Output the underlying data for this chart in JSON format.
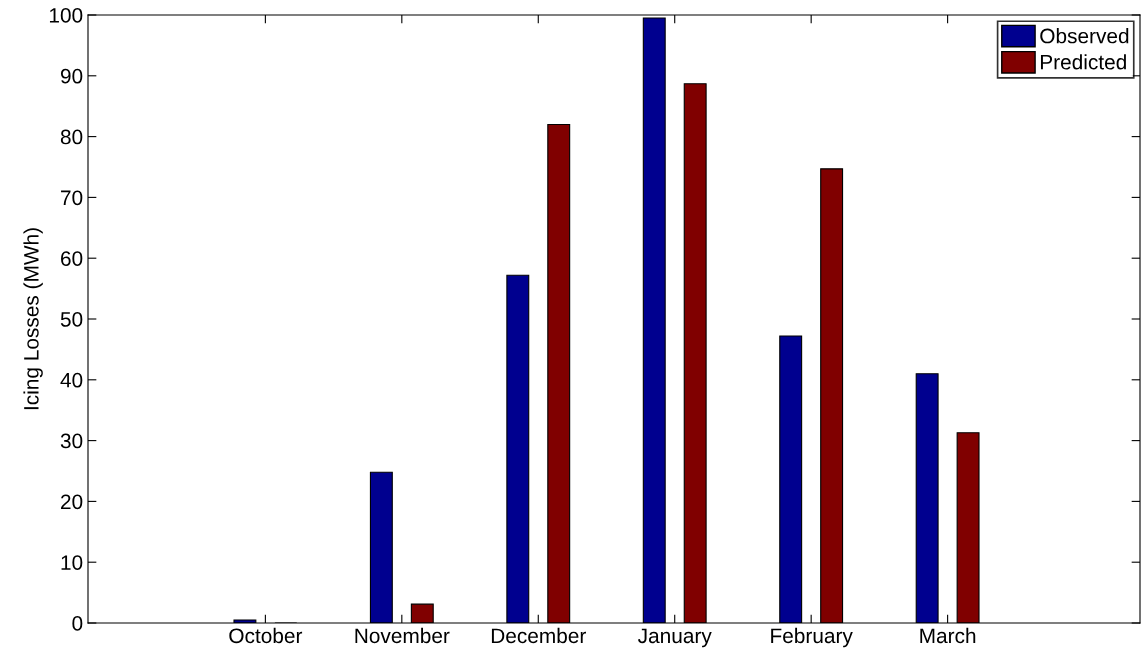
{
  "chart_data": {
    "type": "bar",
    "ylabel": "Icing Losses (MWh)",
    "categories": [
      "October",
      "November",
      "December",
      "January",
      "February",
      "March"
    ],
    "series": [
      {
        "name": "Observed",
        "color": "#00008f",
        "values": [
          0.5,
          24.8,
          57.2,
          99.5,
          47.2,
          41.0
        ]
      },
      {
        "name": "Predicted",
        "color": "#800000",
        "values": [
          0,
          3.1,
          82.0,
          88.7,
          74.7,
          31.3
        ]
      }
    ],
    "ylim": [
      0,
      100
    ],
    "yticks": [
      0,
      10,
      20,
      30,
      40,
      50,
      60,
      70,
      80,
      90,
      100
    ],
    "grid": false,
    "legend": "top right"
  }
}
